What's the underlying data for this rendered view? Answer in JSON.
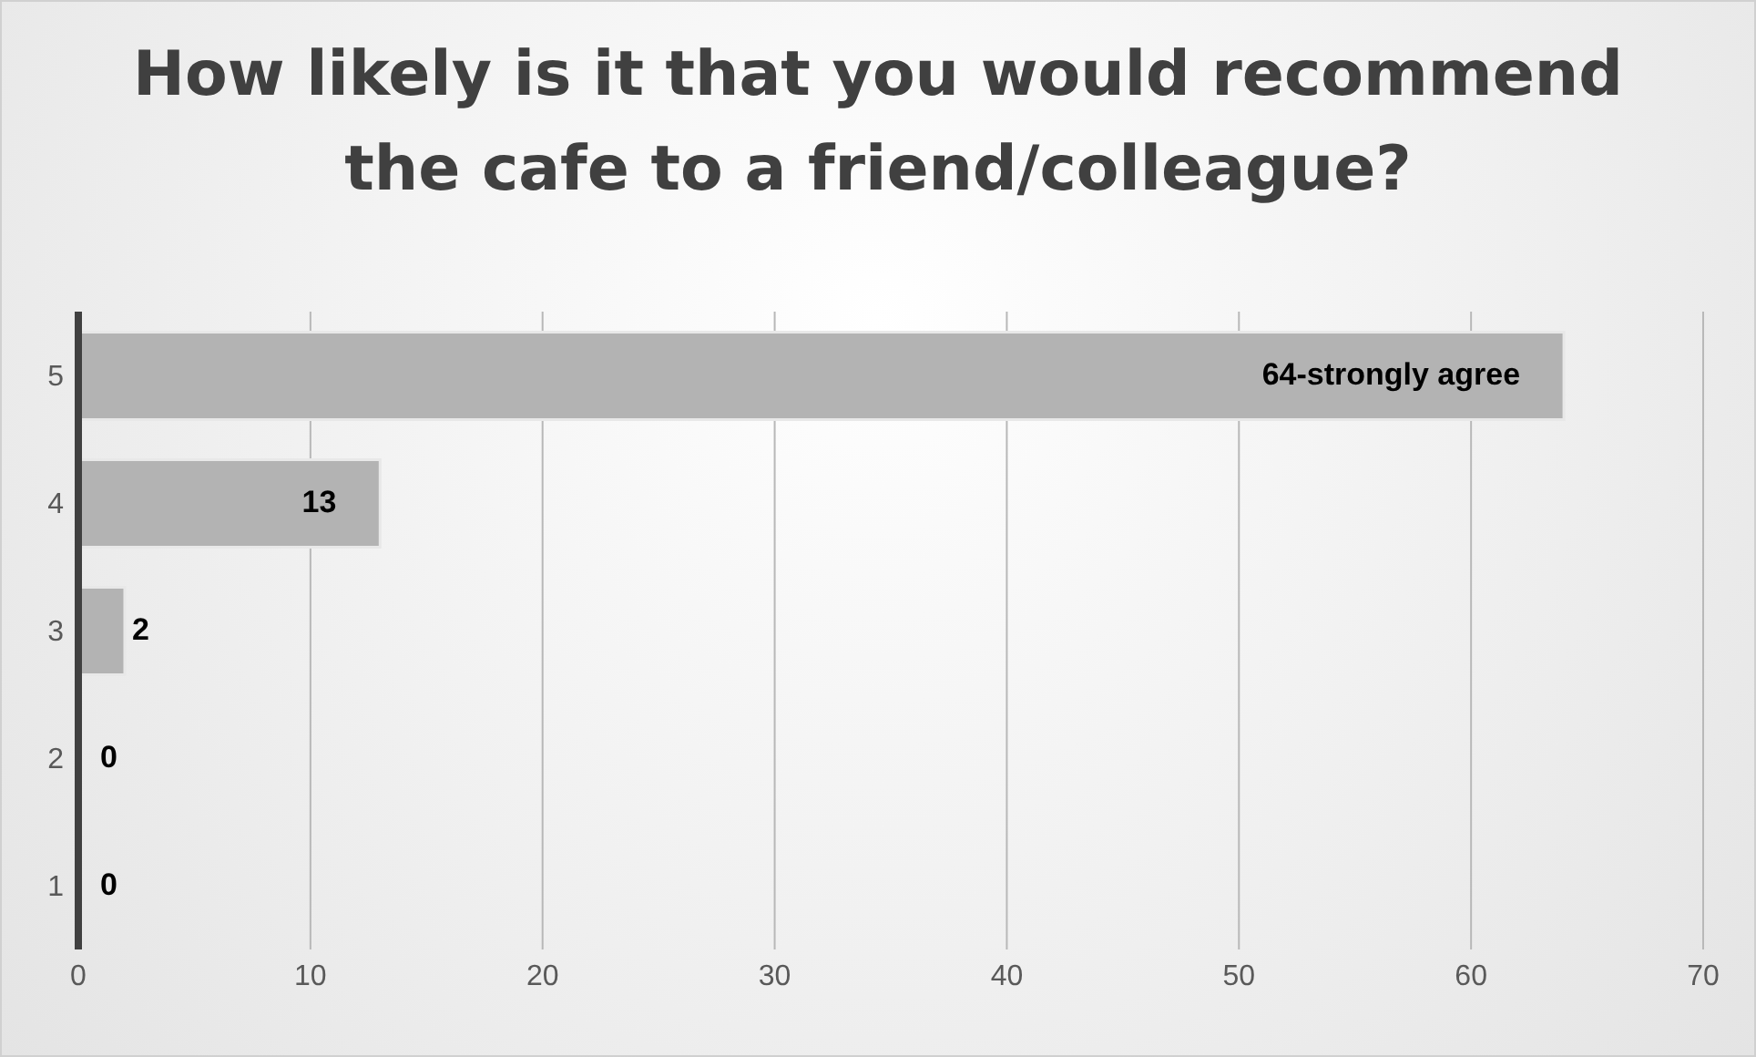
{
  "chart_data": {
    "type": "bar",
    "orientation": "horizontal",
    "title": "How likely is it that you would recommend the cafe to a friend/colleague?",
    "categories": [
      "5",
      "4",
      "3",
      "2",
      "1"
    ],
    "values": [
      64,
      13,
      2,
      0,
      0
    ],
    "value_labels": [
      "64-strongly agree",
      "13",
      "2",
      "0",
      "0"
    ],
    "color": "#b3b3b3",
    "xlim": [
      0,
      70
    ],
    "xticks": [
      0,
      10,
      20,
      30,
      40,
      50,
      60,
      70
    ],
    "grid": "x"
  }
}
